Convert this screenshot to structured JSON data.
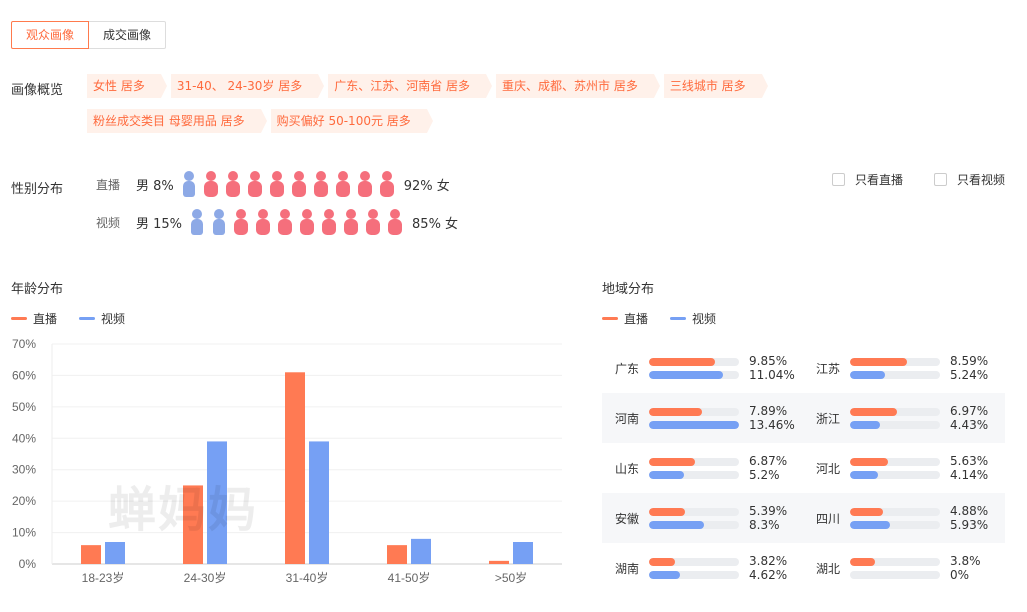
{
  "colors": {
    "live": "#ff7a53",
    "video": "#76a0f4",
    "female": "#f56f7c",
    "male": "#8da9e6",
    "accent": "#ff6a3d"
  },
  "tabs": [
    {
      "label": "观众画像",
      "active": true
    },
    {
      "label": "成交画像",
      "active": false
    }
  ],
  "overview": {
    "label": "画像概览",
    "tags": [
      "女性 居多",
      "31-40、 24-30岁 居多",
      "广东、江苏、河南省 居多",
      "重庆、成都、苏州市 居多",
      "三线城市 居多",
      "粉丝成交类目 母婴用品 居多",
      "购买偏好 50-100元 居多"
    ]
  },
  "gender": {
    "title": "性别分布",
    "rows": [
      {
        "type": "直播",
        "male_label": "男 8%",
        "female_label": "92% 女",
        "male_share": 0.08
      },
      {
        "type": "视频",
        "male_label": "男 15%",
        "female_label": "85% 女",
        "male_share": 0.15
      }
    ],
    "filters": [
      {
        "label": "只看直播"
      },
      {
        "label": "只看视频"
      }
    ]
  },
  "age": {
    "title": "年龄分布",
    "legend": [
      "直播",
      "视频"
    ],
    "watermark": "蝉妈妈"
  },
  "chart_data": {
    "type": "bar",
    "categories": [
      "18-23岁",
      "24-30岁",
      "31-40岁",
      "41-50岁",
      ">50岁"
    ],
    "series": [
      {
        "name": "直播",
        "values": [
          6,
          25,
          61,
          6,
          1
        ]
      },
      {
        "name": "视频",
        "values": [
          7,
          39,
          39,
          8,
          7
        ]
      }
    ],
    "yticks": [
      "0%",
      "10%",
      "20%",
      "30%",
      "40%",
      "50%",
      "60%",
      "70%"
    ],
    "ylim": [
      0,
      70
    ],
    "grid": true,
    "legend_position": "top-left"
  },
  "region": {
    "title": "地域分布",
    "legend": [
      "直播",
      "视频"
    ],
    "items": [
      {
        "prov": "广东",
        "live": 9.85,
        "video": 11.04,
        "live_label": "9.85%",
        "video_label": "11.04%"
      },
      {
        "prov": "江苏",
        "live": 8.59,
        "video": 5.24,
        "live_label": "8.59%",
        "video_label": "5.24%"
      },
      {
        "prov": "河南",
        "live": 7.89,
        "video": 13.46,
        "live_label": "7.89%",
        "video_label": "13.46%"
      },
      {
        "prov": "浙江",
        "live": 6.97,
        "video": 4.43,
        "live_label": "6.97%",
        "video_label": "4.43%"
      },
      {
        "prov": "山东",
        "live": 6.87,
        "video": 5.2,
        "live_label": "6.87%",
        "video_label": "5.2%"
      },
      {
        "prov": "河北",
        "live": 5.63,
        "video": 4.14,
        "live_label": "5.63%",
        "video_label": "4.14%"
      },
      {
        "prov": "安徽",
        "live": 5.39,
        "video": 8.3,
        "live_label": "5.39%",
        "video_label": "8.3%"
      },
      {
        "prov": "四川",
        "live": 4.88,
        "video": 5.93,
        "live_label": "4.88%",
        "video_label": "5.93%"
      },
      {
        "prov": "湖南",
        "live": 3.82,
        "video": 4.62,
        "live_label": "3.82%",
        "video_label": "4.62%"
      },
      {
        "prov": "湖北",
        "live": 3.8,
        "video": 0,
        "live_label": "3.8%",
        "video_label": "0%"
      }
    ]
  }
}
